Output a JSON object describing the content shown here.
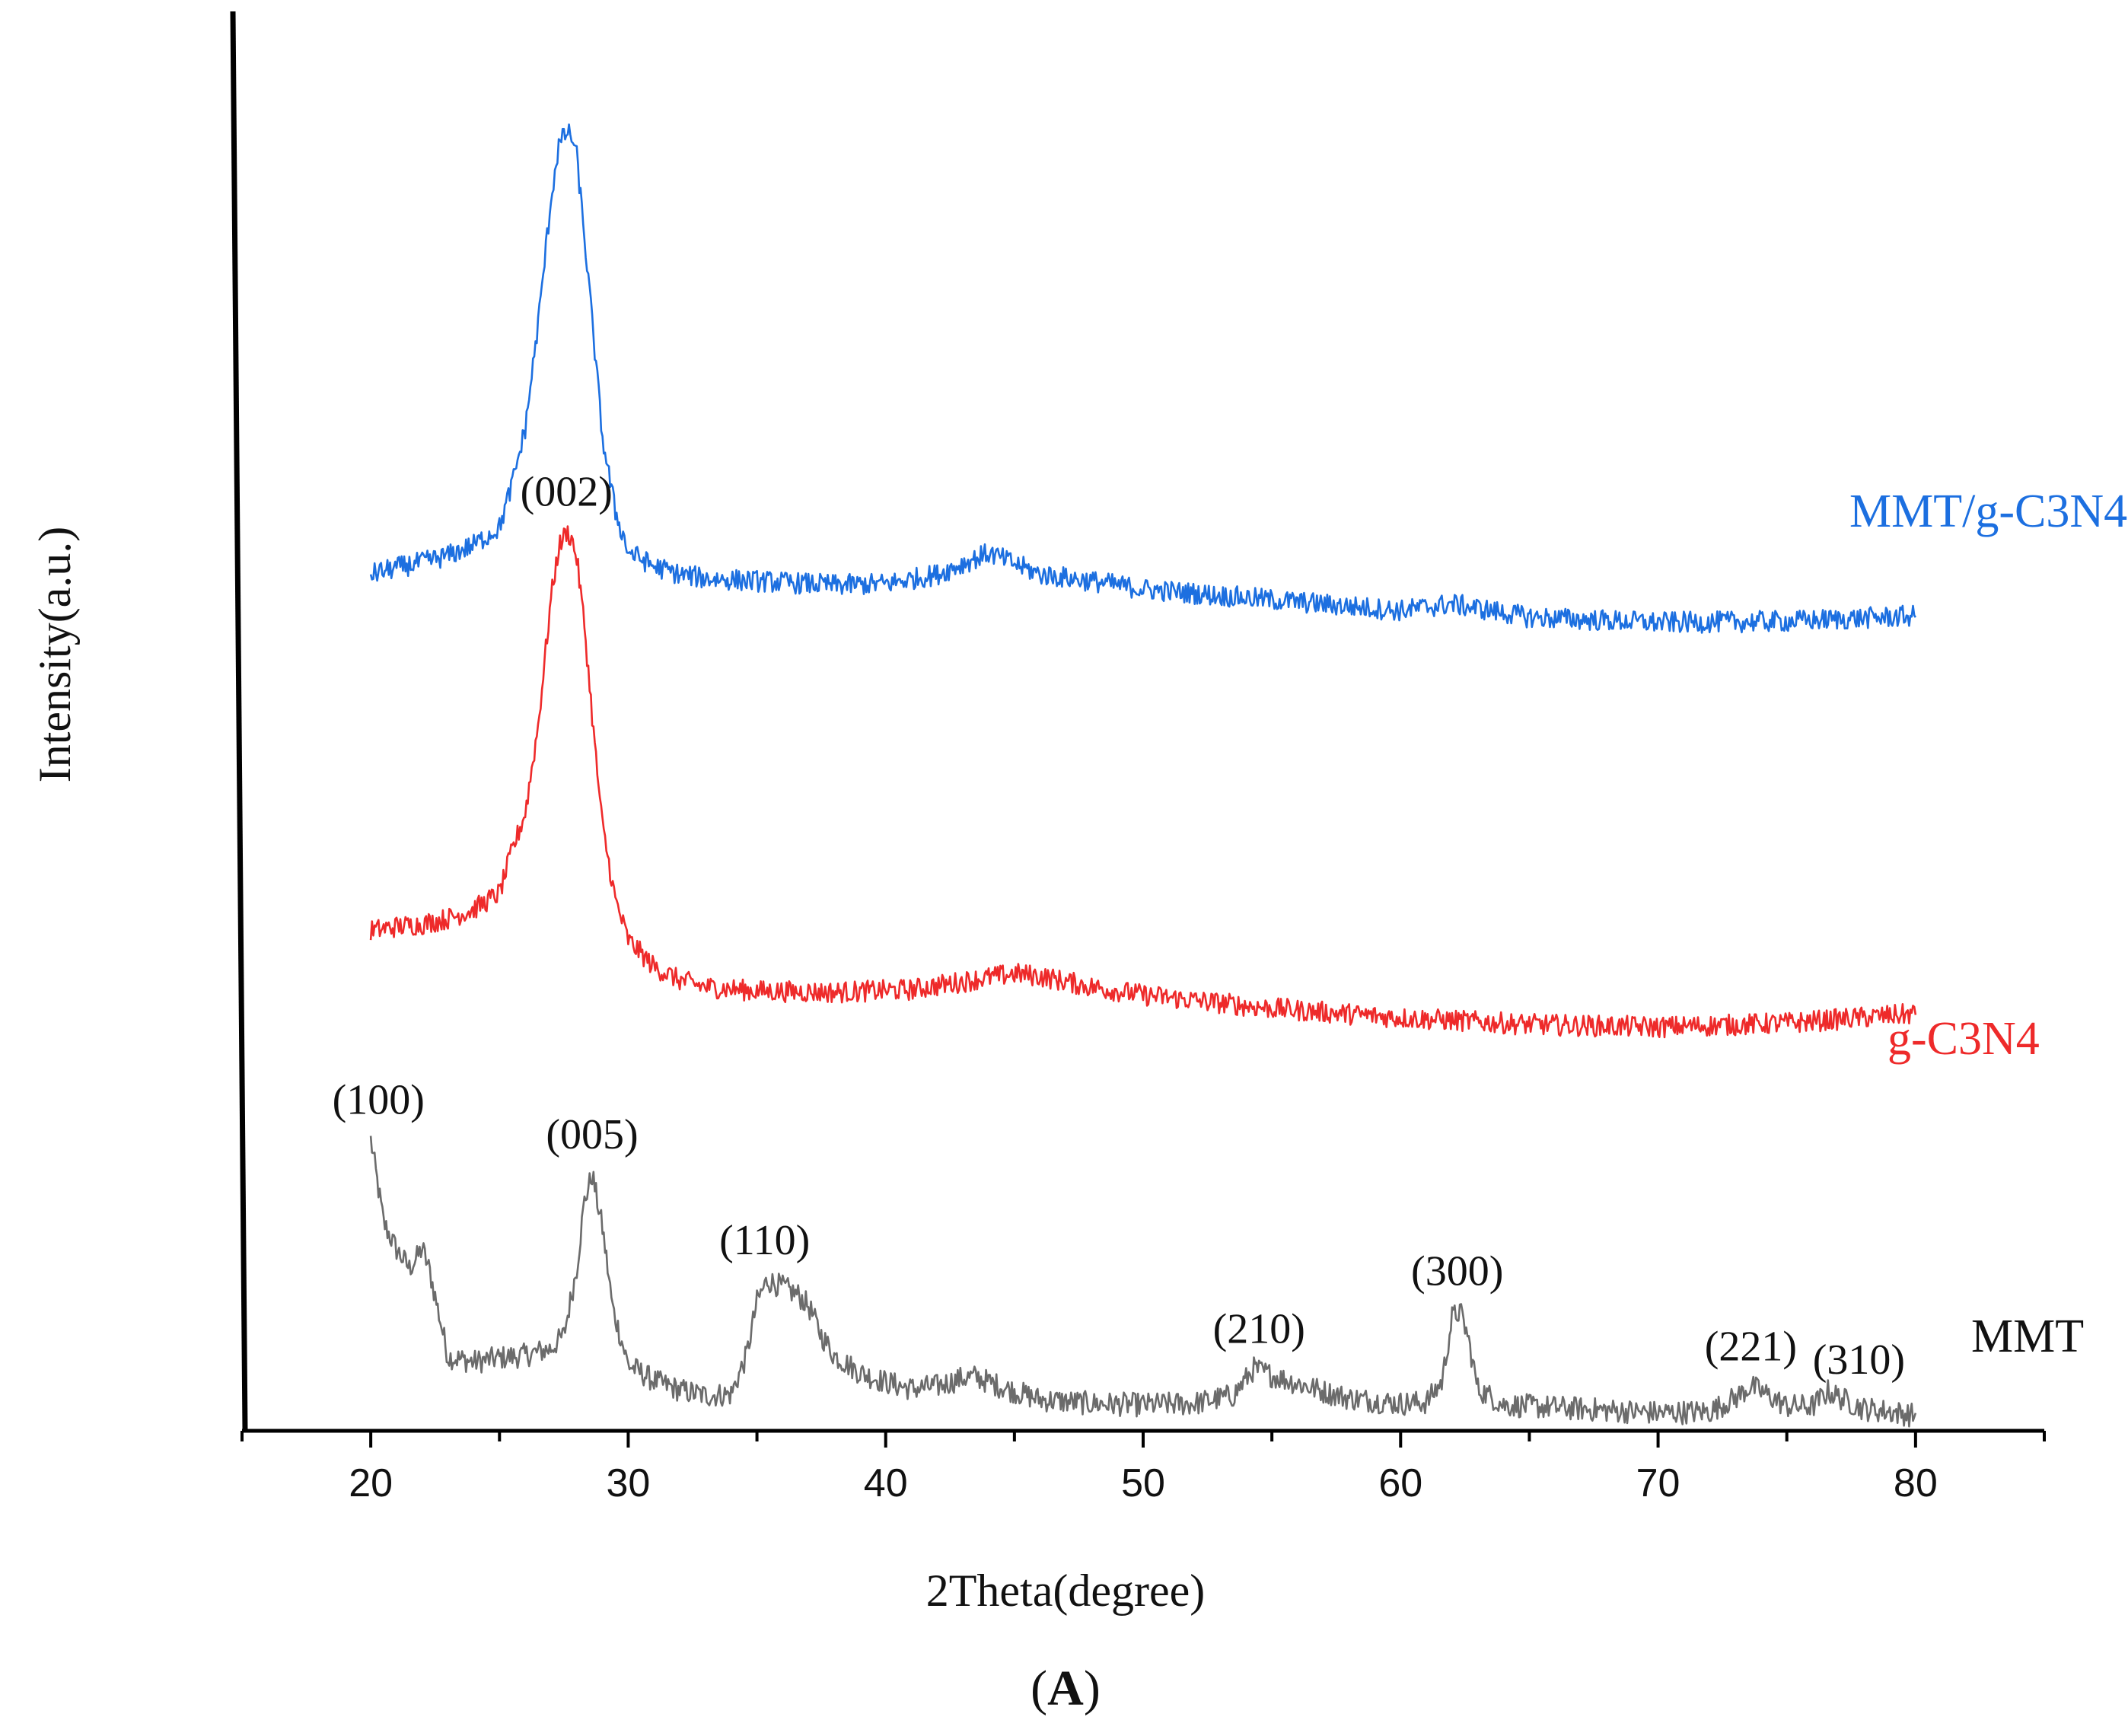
{
  "chart_data": {
    "type": "line",
    "title": "",
    "panel_label": "A",
    "xlabel": "2Theta(degree)",
    "ylabel": "Intensity(a.u.)",
    "xlim": [
      15,
      85
    ],
    "xticks": [
      20,
      30,
      40,
      50,
      60,
      70,
      80
    ],
    "x_tick_labels": [
      "20",
      "30",
      "40",
      "50",
      "60",
      "70",
      "80"
    ],
    "y_units": "arbitrary (stacked, offset)",
    "ylim": [
      0,
      100
    ],
    "grid": false,
    "series": [
      {
        "name": "MMT",
        "label": "MMT",
        "color": "#6b6b6b",
        "x": [
          20,
          20.5,
          21,
          21.5,
          21.8,
          22,
          22.3,
          23,
          24,
          25,
          26,
          27,
          27.5,
          28,
          28.3,
          28.6,
          29,
          29.4,
          30,
          31,
          32,
          33,
          34,
          34.6,
          35,
          35.4,
          36,
          36.6,
          37,
          37.5,
          38,
          39,
          40,
          41,
          42,
          43,
          43.5,
          44,
          45,
          46,
          48,
          50,
          52,
          53.5,
          54.3,
          55,
          56,
          57,
          58,
          60,
          61,
          61.6,
          62,
          62.3,
          62.6,
          63,
          64,
          66,
          68,
          70,
          72,
          73,
          73.6,
          74.2,
          75,
          76,
          76.6,
          77.2,
          78,
          79,
          80
        ],
        "y": [
          20.6,
          14.4,
          12.4,
          11.0,
          11.8,
          12.5,
          10.7,
          4.4,
          4.0,
          4.3,
          4.5,
          5.0,
          6.0,
          11.0,
          16.0,
          18.0,
          14.0,
          8.0,
          3.8,
          2.6,
          1.9,
          1.5,
          1.6,
          4.5,
          8.5,
          10.1,
          9.6,
          9.0,
          8.2,
          6.0,
          4.5,
          3.2,
          2.5,
          2.0,
          2.2,
          2.8,
          2.9,
          2.5,
          1.8,
          1.2,
          0.9,
          0.8,
          0.9,
          1.5,
          3.5,
          3.0,
          2.4,
          1.8,
          1.3,
          0.9,
          1.0,
          2.5,
          7.3,
          7.8,
          6.0,
          2.0,
          0.8,
          0.6,
          0.4,
          0.2,
          0.3,
          1.3,
          2.2,
          1.6,
          0.7,
          0.7,
          1.8,
          1.2,
          0.5,
          0.3,
          0.0
        ]
      },
      {
        "name": "g-C3N4",
        "label": "g-C3N4",
        "color": "#ee2a2a",
        "x": [
          20,
          21,
          22,
          23,
          24,
          25,
          25.5,
          26,
          26.5,
          27,
          27.3,
          27.6,
          27.8,
          28,
          28.3,
          28.7,
          29,
          29.5,
          30,
          31,
          32,
          33,
          35,
          38,
          41,
          43,
          45,
          46,
          48,
          50,
          55,
          60,
          65,
          70,
          75,
          80
        ],
        "y": [
          36.2,
          36.5,
          36.7,
          37.1,
          37.8,
          39.0,
          42.2,
          45.0,
          51.5,
          61.0,
          64.8,
          66.0,
          65.5,
          64.0,
          59.0,
          50.0,
          44.0,
          38.5,
          35.5,
          33.5,
          32.5,
          32.0,
          31.7,
          31.6,
          31.8,
          32.4,
          33.0,
          32.8,
          32.0,
          31.4,
          30.4,
          29.7,
          29.2,
          29.0,
          29.3,
          30.0
        ]
      },
      {
        "name": "MMT/g-C3N4",
        "label": "MMT/g-C3N4",
        "color": "#1c6fe0",
        "x": [
          20,
          21,
          22,
          23,
          24,
          25,
          25.5,
          26,
          26.5,
          27,
          27.3,
          27.6,
          27.8,
          28,
          28.3,
          28.7,
          29,
          29.5,
          30,
          31,
          32,
          33,
          35,
          38,
          40,
          42,
          43,
          44,
          45,
          46,
          48,
          50,
          55,
          60,
          62,
          65,
          70,
          75,
          80
        ],
        "y": [
          62.8,
          63.3,
          63.7,
          64.2,
          65.0,
          66.3,
          69.6,
          73.7,
          81.5,
          90.8,
          94.8,
          95.8,
          95.5,
          94.0,
          88.0,
          79.5,
          73.0,
          67.5,
          64.5,
          63.4,
          62.8,
          62.5,
          62.3,
          62.0,
          62.1,
          62.8,
          63.6,
          64.4,
          63.6,
          62.8,
          62.3,
          61.7,
          60.9,
          60.1,
          60.6,
          59.6,
          59.2,
          59.3,
          59.7
        ]
      }
    ],
    "annotations": [
      {
        "text": "(002)",
        "x": 27.6,
        "series": "g-C3N4"
      },
      {
        "text": "(100)",
        "x": 20.3,
        "series": "MMT"
      },
      {
        "text": "(005)",
        "x": 28.6,
        "series": "MMT"
      },
      {
        "text": "(110)",
        "x": 35.3,
        "series": "MMT"
      },
      {
        "text": "(210)",
        "x": 54.5,
        "series": "MMT"
      },
      {
        "text": "(300)",
        "x": 62.2,
        "series": "MMT"
      },
      {
        "text": "(221)",
        "x": 73.6,
        "series": "MMT"
      },
      {
        "text": "(310)",
        "x": 77.8,
        "series": "MMT"
      }
    ]
  }
}
